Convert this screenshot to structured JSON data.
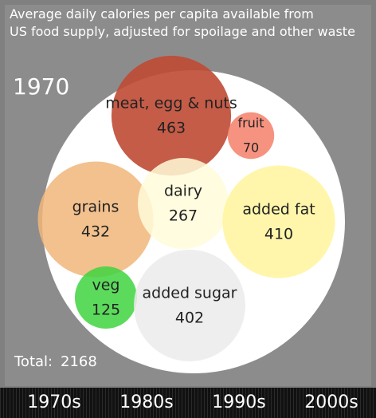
{
  "chart_data": {
    "type": "bubble",
    "title": "Average daily calories per capita available from US food supply, adjusted for spoilage and other waste",
    "year": "1970",
    "items": [
      {
        "name": "meat, egg & nuts",
        "value": 463,
        "color": "#bf4a34"
      },
      {
        "name": "fruit",
        "value": 70,
        "color": "#f5806a"
      },
      {
        "name": "grains",
        "value": 432,
        "color": "#f0b67a"
      },
      {
        "name": "dairy",
        "value": 267,
        "color": "#fffcd9"
      },
      {
        "name": "added fat",
        "value": 410,
        "color": "#fff59c"
      },
      {
        "name": "veg",
        "value": 125,
        "color": "#3fd43f"
      },
      {
        "name": "added sugar",
        "value": 402,
        "color": "#ebebeb"
      }
    ],
    "total_label": "Total:",
    "total": 2168,
    "timeline": [
      "1970s",
      "1980s",
      "1990s",
      "2000s"
    ]
  }
}
